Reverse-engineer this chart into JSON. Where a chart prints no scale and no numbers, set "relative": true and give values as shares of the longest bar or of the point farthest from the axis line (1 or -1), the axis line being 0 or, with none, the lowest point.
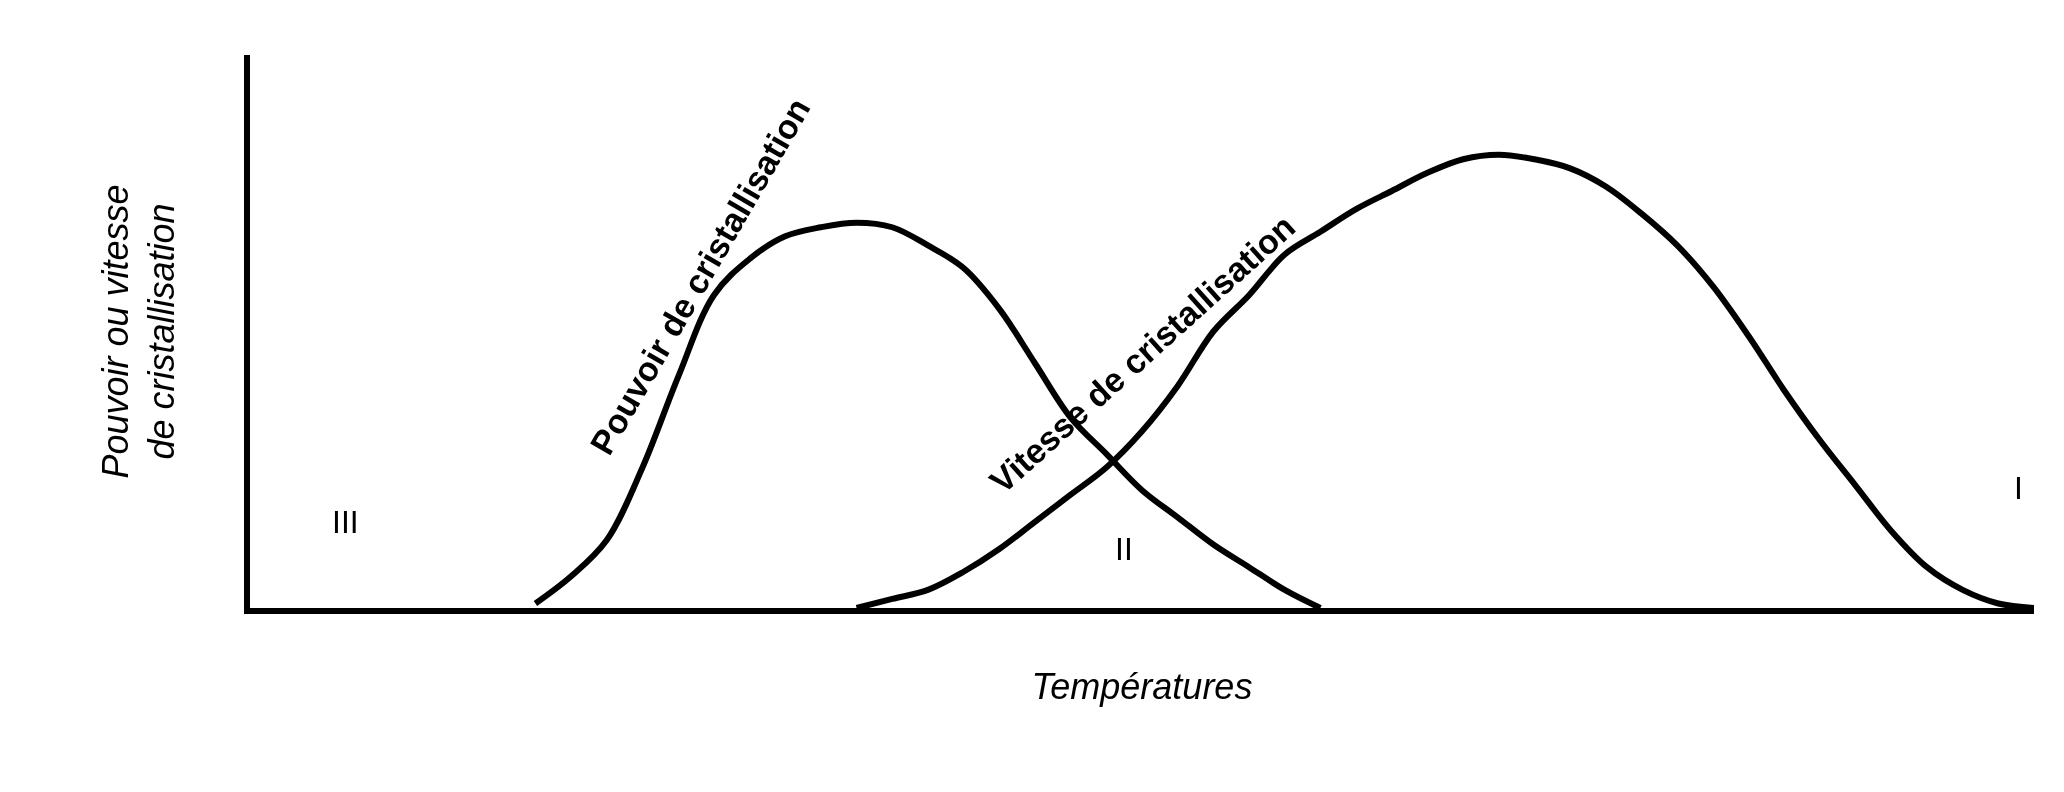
{
  "chart_data": {
    "type": "line",
    "relative": true,
    "xlabel": "Températures",
    "ylabel": "Pouvoir ou vitesse\nde cristallisation",
    "categories": [
      null,
      null,
      null,
      null,
      null,
      null,
      null,
      null,
      null,
      null,
      null,
      null,
      null,
      null,
      null,
      null,
      null,
      null,
      null,
      null,
      null,
      null,
      null,
      null,
      null,
      null,
      null,
      null,
      null,
      null,
      null,
      null,
      null,
      null,
      null,
      null,
      null,
      null,
      null,
      null,
      null,
      null,
      null,
      null,
      null,
      null,
      null,
      null,
      null,
      null,
      null
    ],
    "series": [
      {
        "name": "Pouvoir de cristallisation",
        "color": "#000000",
        "values": [
          null,
          null,
          null,
          null,
          null,
          null,
          null,
          null,
          0.01,
          0.07,
          0.15,
          0.31,
          0.51,
          0.69,
          0.77,
          0.82,
          0.84,
          0.85,
          0.84,
          0.8,
          0.75,
          0.66,
          0.54,
          0.42,
          0.34,
          0.26,
          0.2,
          0.14,
          0.09,
          0.04,
          0.0,
          null,
          null,
          null,
          null,
          null,
          null,
          null,
          null,
          null,
          null,
          null,
          null,
          null,
          null,
          null,
          null,
          null,
          null,
          null,
          null
        ]
      },
      {
        "name": "Vitesse de cristallisation",
        "color": "#000000",
        "values": [
          null,
          null,
          null,
          null,
          null,
          null,
          null,
          null,
          null,
          null,
          null,
          null,
          null,
          null,
          null,
          null,
          null,
          0.0,
          0.02,
          0.04,
          0.08,
          0.13,
          0.19,
          0.25,
          0.31,
          0.39,
          0.49,
          0.61,
          0.69,
          0.78,
          0.83,
          0.88,
          0.92,
          0.96,
          0.99,
          1.0,
          0.99,
          0.97,
          0.93,
          0.87,
          0.8,
          0.71,
          0.6,
          0.48,
          0.37,
          0.27,
          0.17,
          0.09,
          0.04,
          0.01,
          0.0
        ]
      }
    ],
    "annotations": [
      "III",
      "II",
      "I"
    ],
    "legend": false,
    "marker": "none",
    "line_style": "solid"
  }
}
